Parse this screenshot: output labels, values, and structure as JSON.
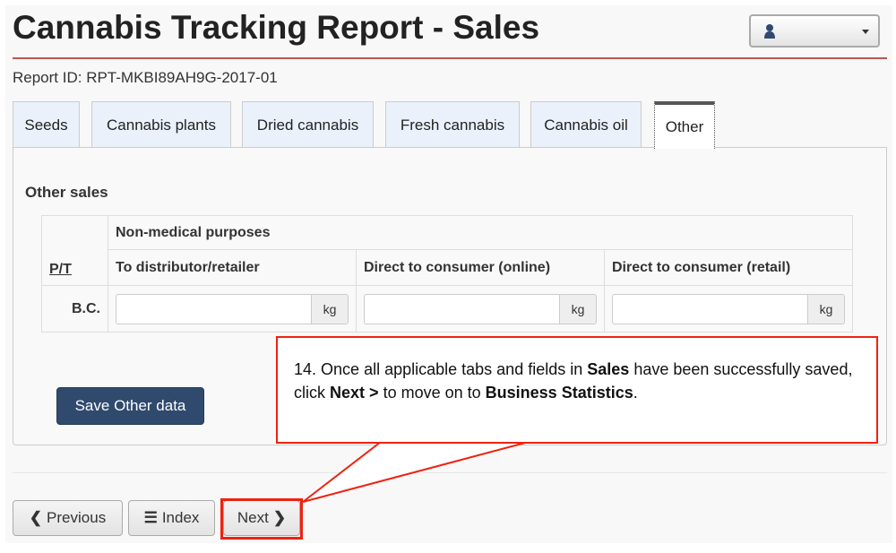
{
  "header": {
    "title": "Cannabis Tracking Report - Sales",
    "report_id": "Report ID: RPT-MKBI89AH9G-2017-01"
  },
  "user_menu": {
    "icon": "user-icon",
    "caret": "caret-down-icon"
  },
  "tabs": [
    {
      "label": "Seeds"
    },
    {
      "label": "Cannabis plants"
    },
    {
      "label": "Dried cannabis"
    },
    {
      "label": "Fresh cannabis"
    },
    {
      "label": "Cannabis oil"
    },
    {
      "label": "Other",
      "active": true
    }
  ],
  "section": {
    "title": "Other sales",
    "group_header": "Non-medical purposes",
    "pt_header": "P/T",
    "columns": [
      "To distributor/retailer",
      "Direct to consumer (online)",
      "Direct to consumer (retail)"
    ],
    "rows": [
      {
        "pt": "B.C.",
        "values": [
          "",
          "",
          ""
        ],
        "unit": "kg"
      }
    ]
  },
  "save_label": "Save Other data",
  "nav": {
    "previous": "Previous",
    "index": "Index",
    "next": "Next"
  },
  "callout": {
    "number": "14.",
    "t1": "Once all applicable tabs and fields in",
    "b1": "Sales",
    "t2": "have been successfully saved, click",
    "b2": "Next >",
    "t3": "to move on to",
    "b3": "Business Statistics",
    "t4": "."
  },
  "colors": {
    "accent": "#2f4a6d",
    "callout": "#e21"
  }
}
